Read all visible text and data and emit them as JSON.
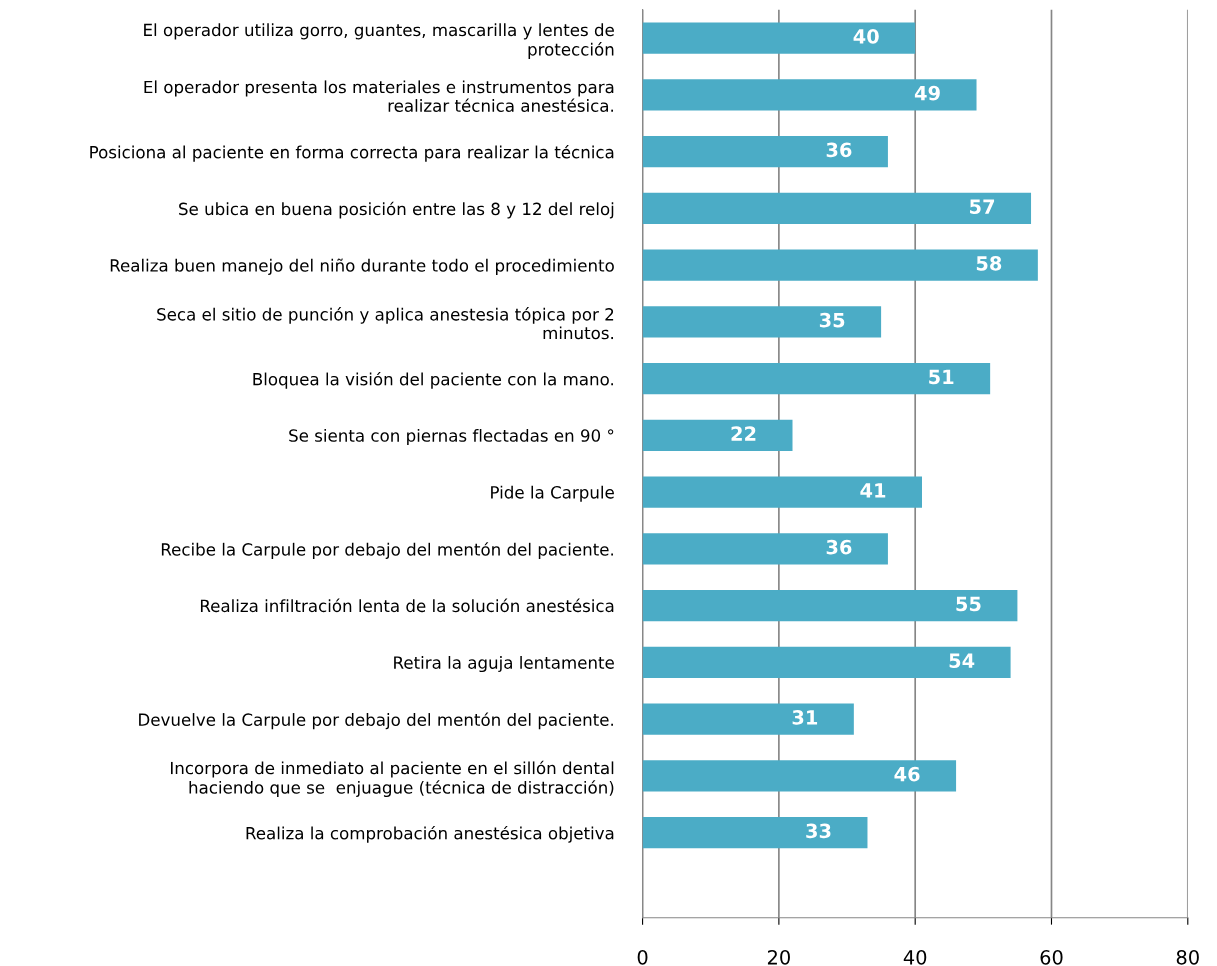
{
  "chart_data": {
    "type": "bar",
    "orientation": "horizontal",
    "categories": [
      "El operador utiliza gorro, guantes, mascarilla y lentes de\nprotección",
      "El operador presenta los materiales e instrumentos para\nrealizar técnica anestésica.",
      "Posiciona al paciente en forma correcta para realizar la técnica",
      "Se ubica en buena posición entre las 8 y 12 del reloj",
      "Realiza buen manejo del niño durante todo el procedimiento",
      "Seca el sitio de punción y aplica anestesia tópica por 2\nminutos.",
      "Bloquea la visión del paciente con la mano.",
      "Se sienta con piernas flectadas en 90 °",
      "Pide la Carpule",
      "Recibe la Carpule por debajo del mentón del paciente.",
      "Realiza infiltración lenta de la solución anestésica",
      "Retira la aguja lentamente",
      "Devuelve la Carpule por debajo del mentón del paciente.",
      "Incorpora de inmediato al paciente en el sillón dental\nhaciendo que se  enjuague (técnica de distracción)",
      "Realiza la comprobación anestésica objetiva"
    ],
    "values": [
      40,
      49,
      36,
      57,
      58,
      35,
      51,
      22,
      41,
      36,
      55,
      54,
      31,
      46,
      33
    ],
    "color": "#4bacc6",
    "xlim": [
      0,
      80
    ],
    "xticks": [
      0,
      20,
      40,
      60,
      80
    ],
    "grid": "x",
    "data_labels": true
  }
}
